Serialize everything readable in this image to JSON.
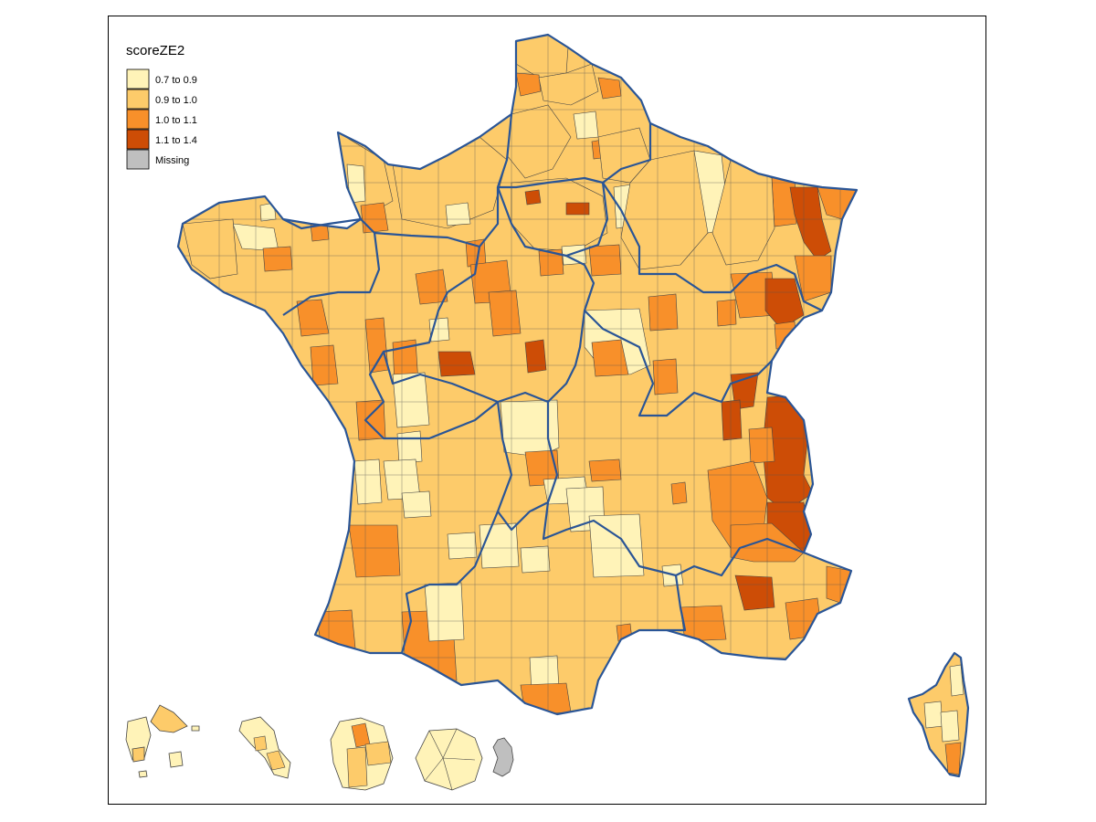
{
  "legend": {
    "title": "scoreZE2",
    "classes": [
      {
        "label": "0.7 to 0.9",
        "color": "#fff3b8"
      },
      {
        "label": "0.9 to 1.0",
        "color": "#fdcb6a"
      },
      {
        "label": "1.0 to 1.1",
        "color": "#f8902a"
      },
      {
        "label": "1.1 to 1.4",
        "color": "#cd4d06"
      },
      {
        "label": "Missing",
        "color": "#bfbfbf"
      }
    ]
  },
  "colors": {
    "region_border": "#2a5596",
    "zone_border": "#444444"
  }
}
